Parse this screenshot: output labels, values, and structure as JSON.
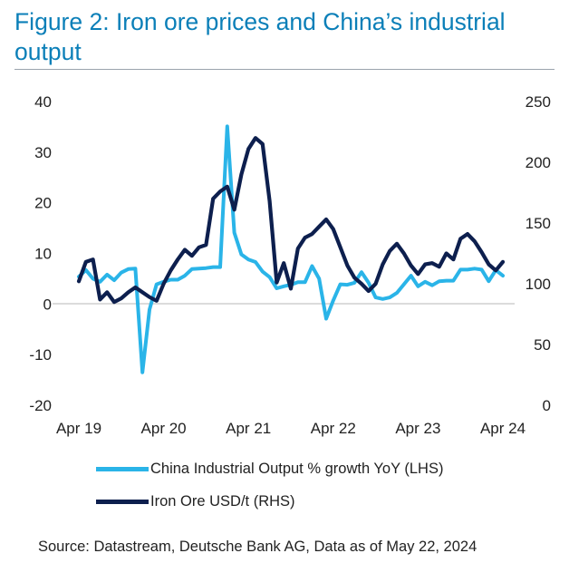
{
  "title": "Figure 2: Iron ore prices and China’s industrial output",
  "source": "Source: Datastream, Deutsche Bank AG, Data as of May 22, 2024",
  "chart_data": {
    "type": "line",
    "title": "Figure 2: Iron ore prices and China’s industrial output",
    "x_ticks": [
      "Apr 19",
      "Apr 20",
      "Apr 21",
      "Apr 22",
      "Apr 23",
      "Apr 24"
    ],
    "x_range_months": [
      0,
      60
    ],
    "y_left": {
      "range": [
        -20,
        40
      ],
      "ticks": [
        "40",
        "30",
        "20",
        "10",
        "0",
        "-10",
        "-20"
      ]
    },
    "y_right": {
      "range": [
        0,
        250
      ],
      "ticks": [
        "250",
        "200",
        "150",
        "100",
        "50",
        "0"
      ]
    },
    "series": [
      {
        "name": "China Industrial Output % growth YoY (LHS)",
        "axis": "left",
        "color": "#2ab4e8",
        "x": [
          0,
          1,
          2,
          3,
          4,
          5,
          6,
          7,
          8,
          9,
          10,
          11,
          12,
          13,
          14,
          15,
          16,
          17,
          18,
          19,
          20,
          21,
          22,
          23,
          24,
          25,
          26,
          27,
          28,
          29,
          30,
          31,
          32,
          33,
          34,
          35,
          36,
          37,
          38,
          39,
          40,
          41,
          42,
          43,
          44,
          45,
          46,
          47,
          48,
          49,
          50,
          51,
          52,
          53,
          54,
          55,
          56,
          57,
          58,
          59,
          60
        ],
        "values": [
          5.4,
          6.7,
          5.0,
          4.4,
          5.8,
          4.7,
          6.2,
          6.9,
          7.0,
          -13.5,
          -1.1,
          3.9,
          4.4,
          4.8,
          4.8,
          5.6,
          6.9,
          7.0,
          7.1,
          7.3,
          7.3,
          35.1,
          14.1,
          9.8,
          8.8,
          8.3,
          6.4,
          5.3,
          3.1,
          3.5,
          3.8,
          4.3,
          4.3,
          7.5,
          5.0,
          -2.9,
          0.7,
          3.9,
          3.8,
          4.2,
          6.3,
          4.2,
          1.3,
          1.0,
          1.3,
          2.2,
          3.9,
          5.6,
          3.5,
          4.4,
          3.7,
          4.5,
          4.6,
          4.6,
          6.8,
          6.8,
          7.0,
          6.8,
          4.5,
          6.7,
          5.6
        ]
      },
      {
        "name": "Iron Ore USD/t (RHS)",
        "axis": "right",
        "color": "#0d1f4e",
        "x": [
          0,
          1,
          2,
          3,
          4,
          5,
          6,
          7,
          8,
          9,
          10,
          11,
          12,
          13,
          14,
          15,
          16,
          17,
          18,
          19,
          20,
          21,
          22,
          23,
          24,
          25,
          26,
          27,
          28,
          29,
          30,
          31,
          32,
          33,
          34,
          35,
          36,
          37,
          38,
          39,
          40,
          41,
          42,
          43,
          44,
          45,
          46,
          47,
          48,
          49,
          50,
          51,
          52,
          53,
          54,
          55,
          56,
          57,
          58,
          59,
          60
        ],
        "values": [
          102,
          118,
          120,
          87,
          93,
          85,
          88,
          93,
          97,
          93,
          89,
          86,
          100,
          111,
          120,
          128,
          123,
          130,
          132,
          170,
          176,
          180,
          161,
          190,
          211,
          220,
          215,
          168,
          101,
          117,
          96,
          129,
          138,
          141,
          147,
          153,
          145,
          130,
          115,
          105,
          100,
          94,
          100,
          116,
          127,
          133,
          125,
          115,
          108,
          116,
          117,
          114,
          125,
          120,
          137,
          141,
          135,
          126,
          116,
          111,
          118
        ]
      }
    ]
  },
  "legend": {
    "items": [
      {
        "label": "China Industrial Output % growth YoY (LHS)",
        "color": "#2ab4e8"
      },
      {
        "label": "Iron Ore USD/t (RHS)",
        "color": "#0d1f4e"
      }
    ]
  }
}
